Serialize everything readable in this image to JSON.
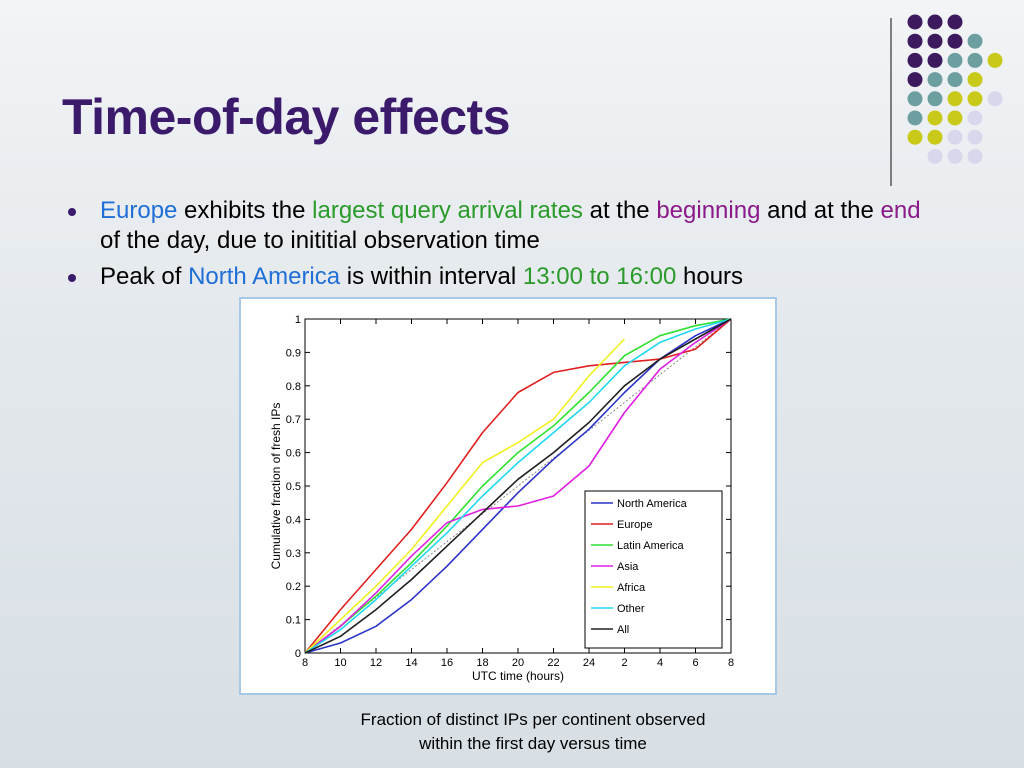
{
  "title": "Time-of-day effects",
  "bullets": [
    {
      "segments": [
        {
          "text": "Europe",
          "color": "#1f6fd6"
        },
        {
          "text": " exhibits the ",
          "color": "#000000"
        },
        {
          "text": "largest query arrival rates",
          "color": "#2a9a2a"
        },
        {
          "text": " at the ",
          "color": "#000000"
        },
        {
          "text": "beginning",
          "color": "#8a1a8a"
        },
        {
          "text": " and at the ",
          "color": "#000000"
        },
        {
          "text": "end",
          "color": "#8a1a8a"
        },
        {
          "text": " of the day, due to inititial observation time",
          "color": "#000000"
        }
      ]
    },
    {
      "segments": [
        {
          "text": "Peak of ",
          "color": "#000000"
        },
        {
          "text": "North America",
          "color": "#1f6fd6"
        },
        {
          "text": " is within interval ",
          "color": "#000000"
        },
        {
          "text": "13:00 to 16:00",
          "color": "#2a9a2a"
        },
        {
          "text": " hours",
          "color": "#000000"
        }
      ]
    }
  ],
  "caption": [
    "Fraction of distinct IPs per continent observed",
    "within the first day versus time"
  ],
  "chart_data": {
    "type": "line",
    "x_label": "UTC time (hours)",
    "y_label": "Cumulative fraction of fresh IPs",
    "x": [
      8,
      10,
      12,
      14,
      16,
      18,
      20,
      22,
      24,
      26,
      28,
      30,
      32
    ],
    "xlim": [
      8,
      32
    ],
    "xticks": [
      8,
      10,
      12,
      14,
      16,
      18,
      20,
      22,
      24,
      {
        "value": 26,
        "label": "2"
      },
      {
        "value": 28,
        "label": "4"
      },
      {
        "value": 30,
        "label": "6"
      },
      {
        "value": 32,
        "label": "8"
      }
    ],
    "ylim": [
      0,
      1
    ],
    "yticks": [
      0,
      0.1,
      0.2,
      0.3,
      0.4,
      0.5,
      0.6,
      0.7,
      0.8,
      0.9,
      1
    ],
    "legend": "lower right",
    "series": [
      {
        "name": "North America",
        "color": "#2a34c8",
        "values": [
          0,
          0.03,
          0.08,
          0.16,
          0.26,
          0.37,
          0.48,
          0.58,
          0.67,
          0.78,
          0.88,
          0.95,
          1
        ]
      },
      {
        "name": "Europe",
        "color": "#e02020",
        "values": [
          0,
          0.13,
          0.25,
          0.37,
          0.51,
          0.66,
          0.78,
          0.84,
          0.86,
          0.87,
          0.88,
          0.91,
          1
        ]
      },
      {
        "name": "Latin America",
        "color": "#30e030",
        "values": [
          0,
          0.08,
          0.17,
          0.27,
          0.38,
          0.5,
          0.6,
          0.68,
          0.78,
          0.89,
          0.95,
          0.98,
          1
        ]
      },
      {
        "name": "Asia",
        "color": "#e020e0",
        "values": [
          0,
          0.08,
          0.18,
          0.29,
          0.39,
          0.43,
          0.44,
          0.47,
          0.56,
          0.72,
          0.85,
          0.93,
          1
        ]
      },
      {
        "name": "Africa",
        "color": "#f0f020",
        "values": [
          0,
          0.1,
          0.2,
          0.31,
          0.44,
          0.57,
          0.63,
          0.7,
          0.83,
          0.94,
          null,
          null,
          null
        ]
      },
      {
        "name": "Other",
        "color": "#20d8f0",
        "values": [
          0,
          0.07,
          0.16,
          0.26,
          0.36,
          0.47,
          0.57,
          0.66,
          0.75,
          0.86,
          0.93,
          0.97,
          1
        ]
      },
      {
        "name": "All",
        "color": "#202020",
        "values": [
          0,
          0.05,
          0.13,
          0.22,
          0.32,
          0.42,
          0.52,
          0.6,
          0.69,
          0.8,
          0.88,
          0.94,
          1
        ]
      }
    ]
  }
}
